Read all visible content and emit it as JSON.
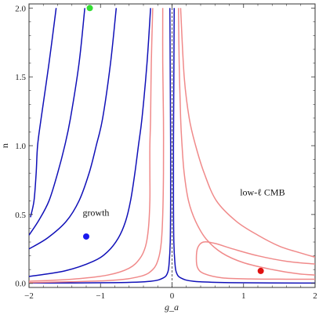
{
  "chart_data": {
    "type": "line",
    "title": "",
    "xlabel": "g_a",
    "ylabel": "n",
    "xlim": [
      -2,
      2
    ],
    "ylim": [
      -0.03,
      2.03
    ],
    "x_ticks": [
      -2,
      -1,
      0,
      1,
      2
    ],
    "x_tick_labels": [
      "−2",
      "−1",
      "0",
      "1",
      "2"
    ],
    "y_ticks": [
      0.0,
      0.5,
      1.0,
      1.5,
      2.0
    ],
    "y_tick_labels": [
      "0.0",
      "0.5",
      "1.0",
      "1.5",
      "2.0"
    ],
    "grid": false,
    "reference_line": {
      "x": 0,
      "style": "dashed"
    },
    "annotations": [
      {
        "text": "growth",
        "x": -1.25,
        "y": 0.49
      },
      {
        "text": "low-ℓ CMB",
        "x": 0.95,
        "y": 0.64
      }
    ],
    "markers": [
      {
        "color": "#33dd33",
        "x": -1.15,
        "y": 2.0
      },
      {
        "color": "#1a1aee",
        "x": -1.2,
        "y": 0.34
      },
      {
        "color": "#e01010",
        "x": 1.24,
        "y": 0.09
      }
    ],
    "series": [
      {
        "group": "growth",
        "color": "#1010b8",
        "values": [
          [
            -1.62,
            2.0
          ],
          [
            -1.72,
            1.6
          ],
          [
            -1.83,
            1.2
          ],
          [
            -1.88,
            1.0
          ],
          [
            -1.9,
            0.8
          ],
          [
            -1.93,
            0.6
          ],
          [
            -1.98,
            0.48
          ]
        ]
      },
      {
        "group": "growth",
        "color": "#1010b8",
        "values": [
          [
            -1.22,
            2.0
          ],
          [
            -1.3,
            1.6
          ],
          [
            -1.42,
            1.2
          ],
          [
            -1.5,
            1.0
          ],
          [
            -1.6,
            0.8
          ],
          [
            -1.72,
            0.6
          ],
          [
            -1.86,
            0.46
          ],
          [
            -2.0,
            0.35
          ]
        ]
      },
      {
        "group": "growth",
        "color": "#1010b8",
        "values": [
          [
            -0.78,
            2.0
          ],
          [
            -0.86,
            1.6
          ],
          [
            -0.97,
            1.2
          ],
          [
            -1.06,
            1.0
          ],
          [
            -1.16,
            0.8
          ],
          [
            -1.3,
            0.6
          ],
          [
            -1.48,
            0.45
          ],
          [
            -1.74,
            0.33
          ],
          [
            -2.0,
            0.25
          ]
        ]
      },
      {
        "group": "growth",
        "color": "#1010b8",
        "values": [
          [
            -0.3,
            2.0
          ],
          [
            -0.35,
            1.6
          ],
          [
            -0.42,
            1.2
          ],
          [
            -0.47,
            1.0
          ],
          [
            -0.52,
            0.8
          ],
          [
            -0.58,
            0.6
          ],
          [
            -0.65,
            0.45
          ],
          [
            -0.75,
            0.33
          ],
          [
            -0.9,
            0.23
          ],
          [
            -1.1,
            0.16
          ],
          [
            -1.5,
            0.09
          ],
          [
            -2.0,
            0.05
          ]
        ]
      },
      {
        "group": "growth",
        "color": "#1010b8",
        "values": [
          [
            0.03,
            2.0
          ],
          [
            0.025,
            1.5
          ],
          [
            0.02,
            1.0
          ],
          [
            0.02,
            0.6
          ],
          [
            0.025,
            0.3
          ],
          [
            0.04,
            0.15
          ],
          [
            0.06,
            0.08
          ],
          [
            0.12,
            0.04
          ],
          [
            0.3,
            0.015
          ],
          [
            0.8,
            0.005
          ],
          [
            2.0,
            0.002
          ]
        ]
      },
      {
        "group": "growth",
        "color": "#1010b8",
        "values": [
          [
            -0.03,
            2.0
          ],
          [
            -0.025,
            1.5
          ],
          [
            -0.02,
            1.0
          ],
          [
            -0.02,
            0.6
          ],
          [
            -0.025,
            0.3
          ],
          [
            -0.04,
            0.15
          ],
          [
            -0.06,
            0.08
          ],
          [
            -0.12,
            0.04
          ],
          [
            -0.3,
            0.015
          ],
          [
            -0.8,
            0.005
          ],
          [
            -2.0,
            0.002
          ]
        ]
      },
      {
        "group": "low-ℓ CMB",
        "color": "#f08a8a",
        "values": [
          [
            -0.27,
            2.0
          ],
          [
            -0.29,
            1.6
          ],
          [
            -0.3,
            1.2
          ],
          [
            -0.31,
            1.0
          ],
          [
            -0.31,
            0.8
          ],
          [
            -0.31,
            0.6
          ],
          [
            -0.33,
            0.4
          ],
          [
            -0.37,
            0.27
          ],
          [
            -0.45,
            0.18
          ],
          [
            -0.6,
            0.11
          ],
          [
            -0.9,
            0.06
          ],
          [
            -1.4,
            0.03
          ],
          [
            -2.0,
            0.015
          ]
        ]
      },
      {
        "group": "low-ℓ CMB",
        "color": "#f08a8a",
        "values": [
          [
            -0.13,
            2.0
          ],
          [
            -0.13,
            1.6
          ],
          [
            -0.12,
            1.2
          ],
          [
            -0.12,
            0.8
          ],
          [
            -0.13,
            0.5
          ],
          [
            -0.15,
            0.3
          ],
          [
            -0.19,
            0.18
          ],
          [
            -0.27,
            0.1
          ],
          [
            -0.45,
            0.05
          ],
          [
            -0.9,
            0.02
          ],
          [
            -2.0,
            0.005
          ]
        ]
      },
      {
        "group": "low-ℓ CMB",
        "color": "#f08a8a",
        "values": [
          [
            0.12,
            2.0
          ],
          [
            0.17,
            1.5
          ],
          [
            0.24,
            1.2
          ],
          [
            0.33,
            1.0
          ],
          [
            0.45,
            0.8
          ],
          [
            0.62,
            0.6
          ],
          [
            0.9,
            0.45
          ],
          [
            1.2,
            0.35
          ],
          [
            1.5,
            0.27
          ],
          [
            1.8,
            0.22
          ],
          [
            2.0,
            0.19
          ]
        ]
      },
      {
        "group": "low-ℓ CMB",
        "color": "#f08a8a",
        "values": [
          [
            0.09,
            2.0
          ],
          [
            0.1,
            1.6
          ],
          [
            0.12,
            1.2
          ],
          [
            0.14,
            1.0
          ],
          [
            0.17,
            0.8
          ],
          [
            0.23,
            0.6
          ],
          [
            0.33,
            0.45
          ],
          [
            0.48,
            0.32
          ],
          [
            0.7,
            0.22
          ],
          [
            1.0,
            0.15
          ],
          [
            1.4,
            0.1
          ],
          [
            1.75,
            0.07
          ],
          [
            2.0,
            0.06
          ]
        ]
      },
      {
        "group": "low-ℓ CMB",
        "color": "#f08a8a",
        "closed": true,
        "values": [
          [
            2.0,
            0.14
          ],
          [
            1.6,
            0.16
          ],
          [
            1.2,
            0.2
          ],
          [
            0.85,
            0.25
          ],
          [
            0.6,
            0.29
          ],
          [
            0.44,
            0.3
          ],
          [
            0.36,
            0.26
          ],
          [
            0.34,
            0.18
          ],
          [
            0.36,
            0.11
          ],
          [
            0.45,
            0.07
          ],
          [
            0.7,
            0.04
          ],
          [
            1.1,
            0.032
          ],
          [
            1.6,
            0.03
          ],
          [
            2.0,
            0.03
          ]
        ]
      }
    ]
  }
}
